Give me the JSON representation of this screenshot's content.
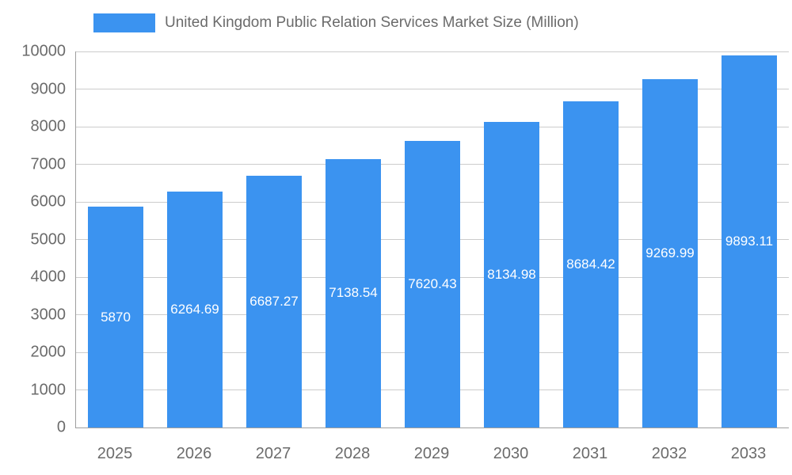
{
  "chart_data": {
    "type": "bar",
    "title": "United Kingdom Public Relation Services Market Size (Million)",
    "categories": [
      "2025",
      "2026",
      "2027",
      "2028",
      "2029",
      "2030",
      "2031",
      "2032",
      "2033"
    ],
    "values": [
      5870,
      6264.69,
      6687.27,
      7138.54,
      7620.43,
      8134.98,
      8684.42,
      9269.99,
      9893.11
    ],
    "value_labels": [
      "5870",
      "6264.69",
      "6687.27",
      "7138.54",
      "7620.43",
      "8134.98",
      "8684.42",
      "9269.99",
      "9893.11"
    ],
    "ylim": [
      0,
      10000
    ],
    "yticks": [
      "0",
      "1000",
      "2000",
      "3000",
      "4000",
      "5000",
      "6000",
      "7000",
      "8000",
      "9000",
      "10000"
    ],
    "grid": true,
    "legend_position": "top",
    "bar_color": "#3b93f0",
    "bar_label_color": "#ffffff",
    "axis_text_color": "#6b6b6b",
    "grid_color": "#cccccc"
  }
}
